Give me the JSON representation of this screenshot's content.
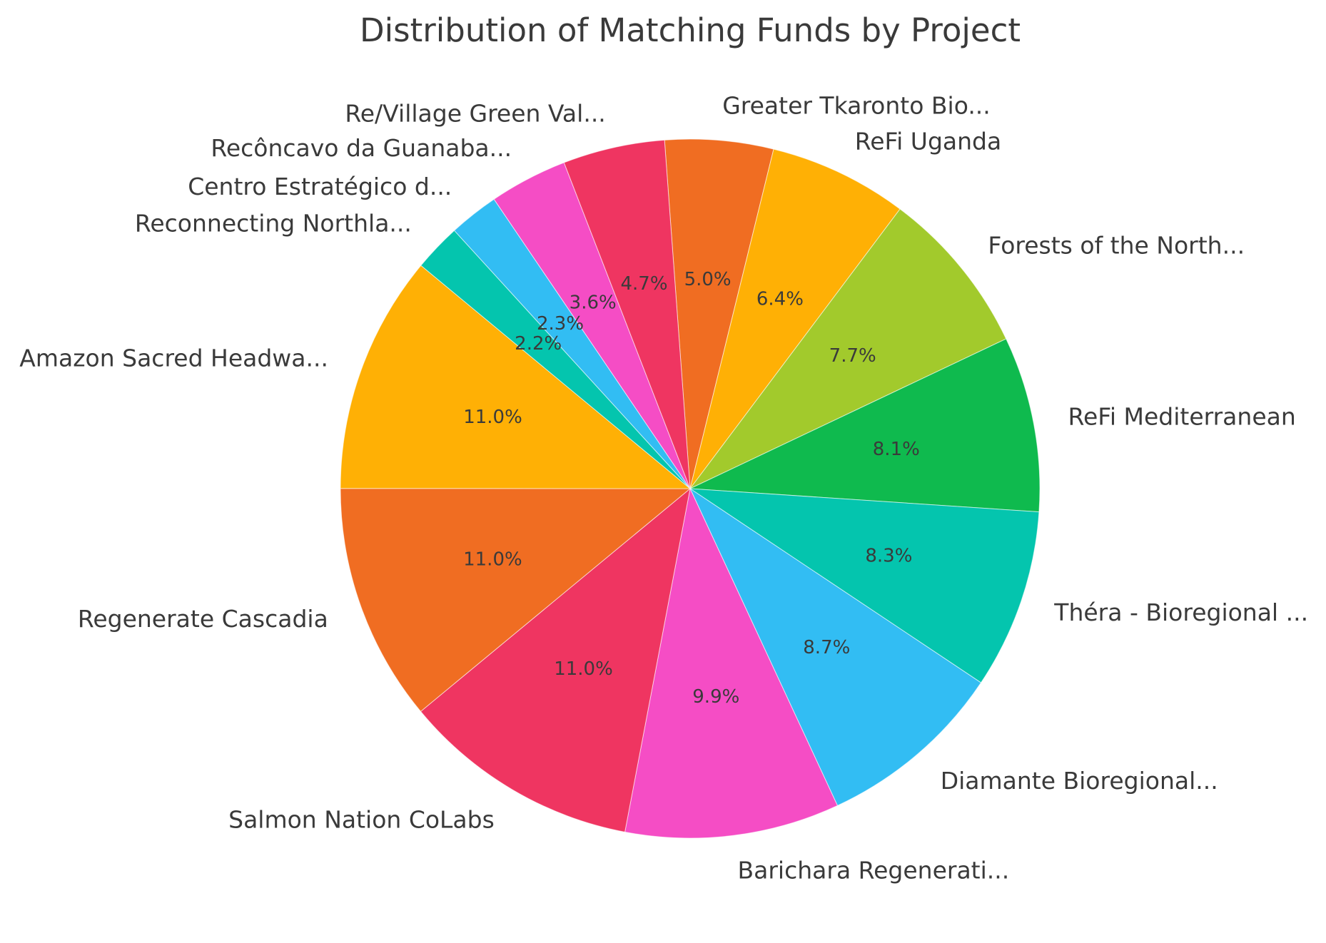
{
  "figure": {
    "background_color": "#ffffff",
    "text_color": "#3a3a3a"
  },
  "chart_data": {
    "type": "pie",
    "title": "Distribution of Matching Funds by Project",
    "legend": "none",
    "grid": "none",
    "direction": "clockwise",
    "start_angle_deg": 94.2,
    "label_distance": 1.1,
    "pct_distance": 0.6,
    "slices": [
      {
        "label": "Greater Tkaronto Bio...",
        "value": 5.0,
        "pct_label": "5.0%",
        "color": "#F06D22"
      },
      {
        "label": "ReFi Uganda",
        "value": 6.4,
        "pct_label": "6.4%",
        "color": "#FFB005"
      },
      {
        "label": "Forests of the North...",
        "value": 7.7,
        "pct_label": "7.7%",
        "color": "#A2CA2C"
      },
      {
        "label": "ReFi Mediterranean",
        "value": 8.1,
        "pct_label": "8.1%",
        "color": "#0FBA4E"
      },
      {
        "label": "Théra - Bioregional ...",
        "value": 8.3,
        "pct_label": "8.3%",
        "color": "#04C5AE"
      },
      {
        "label": "Diamante Bioregional...",
        "value": 8.7,
        "pct_label": "8.7%",
        "color": "#32BDF3"
      },
      {
        "label": "Barichara Regenerati...",
        "value": 9.9,
        "pct_label": "9.9%",
        "color": "#F54DC5"
      },
      {
        "label": "Salmon Nation CoLabs",
        "value": 11.0,
        "pct_label": "11.0%",
        "color": "#EF3561"
      },
      {
        "label": "Regenerate Cascadia",
        "value": 11.0,
        "pct_label": "11.0%",
        "color": "#F06D22"
      },
      {
        "label": "Amazon Sacred Headwa...",
        "value": 11.0,
        "pct_label": "11.0%",
        "color": "#FFB005"
      },
      {
        "label": "Reconnecting Northla...",
        "value": 2.2,
        "pct_label": "2.2%",
        "color": "#04C5AE"
      },
      {
        "label": "Centro Estratégico d...",
        "value": 2.3,
        "pct_label": "2.3%",
        "color": "#32BDF3"
      },
      {
        "label": "Recôncavo da Guanaba...",
        "value": 3.6,
        "pct_label": "3.6%",
        "color": "#F54DC5"
      },
      {
        "label": "Re/Village Green Val...",
        "value": 4.7,
        "pct_label": "4.7%",
        "color": "#EF3561"
      }
    ]
  }
}
